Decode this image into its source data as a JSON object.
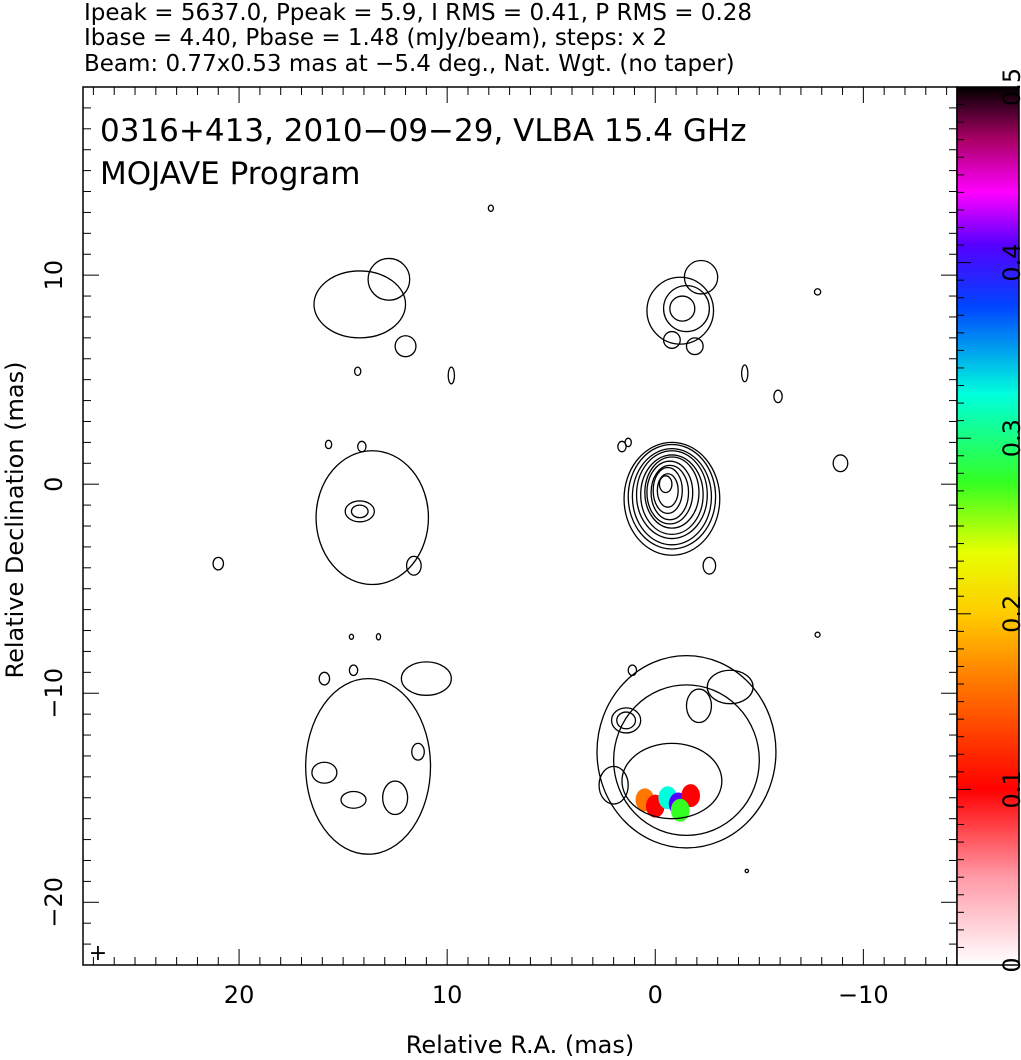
{
  "header": {
    "line1": "Ipeak = 5637.0, Ppeak = 5.9, I RMS = 0.41, P RMS = 0.28",
    "line2": "Ibase = 4.40, Pbase = 1.48 (mJy/beam), steps: x 2",
    "line3": "Beam: 0.77x0.53 mas at −5.4 deg., Nat. Wgt. (no taper)"
  },
  "chart_data": {
    "type": "contour",
    "title": "0316+413, 2010−09−29, VLBA 15.4 GHz",
    "subtitle": "MOJAVE Program",
    "xlabel": "Relative R.A. (mas)",
    "ylabel": "Relative Declination (mas)",
    "xlim": [
      27.5,
      -14.5
    ],
    "ylim": [
      -23,
      19
    ],
    "x_ticks": [
      20,
      10,
      0,
      -10
    ],
    "x_tick_labels": [
      "20",
      "10",
      "0",
      "−10"
    ],
    "y_ticks": [
      10,
      0,
      -10,
      -20
    ],
    "y_tick_labels": [
      "10",
      "0",
      "−10",
      "−20"
    ],
    "colorbar": {
      "range": [
        0,
        0.5
      ],
      "ticks": [
        0,
        0.1,
        0.2,
        0.3,
        0.4,
        0.5
      ],
      "tick_labels": [
        "0",
        "0.1",
        "0.2",
        "0.3",
        "0.4",
        "0.5"
      ]
    },
    "beam_marker": "+",
    "panels": [
      {
        "name": "top-left",
        "contours": [
          {
            "x": 14.2,
            "y": 8.6,
            "rx": 2.2,
            "ry": 1.6
          },
          {
            "x": 12.8,
            "y": 9.8,
            "rx": 1.0,
            "ry": 1.0
          },
          {
            "x": 12.0,
            "y": 6.6,
            "rx": 0.5,
            "ry": 0.5
          },
          {
            "x": 14.3,
            "y": 5.4,
            "rx": 0.15,
            "ry": 0.2
          }
        ]
      },
      {
        "name": "top-right",
        "contours": [
          {
            "x": -1.2,
            "y": 8.3,
            "rx": 1.6,
            "ry": 1.6
          },
          {
            "x": -1.5,
            "y": 8.4,
            "rx": 1.1,
            "ry": 1.1
          },
          {
            "x": -1.3,
            "y": 8.4,
            "rx": 0.6,
            "ry": 0.6
          },
          {
            "x": -2.2,
            "y": 9.9,
            "rx": 0.8,
            "ry": 0.8
          },
          {
            "x": -0.8,
            "y": 6.9,
            "rx": 0.4,
            "ry": 0.4
          },
          {
            "x": -1.9,
            "y": 6.6,
            "rx": 0.4,
            "ry": 0.4
          }
        ]
      },
      {
        "name": "middle-left",
        "contours": [
          {
            "x": 13.6,
            "y": -1.6,
            "rx": 2.7,
            "ry": 3.2
          },
          {
            "x": 14.2,
            "y": -1.3,
            "rx": 0.7,
            "ry": 0.5
          },
          {
            "x": 14.2,
            "y": -1.3,
            "rx": 0.4,
            "ry": 0.3
          },
          {
            "x": 15.7,
            "y": 1.9,
            "rx": 0.15,
            "ry": 0.2
          },
          {
            "x": 11.6,
            "y": -3.9,
            "rx": 0.35,
            "ry": 0.45
          },
          {
            "x": 21.0,
            "y": -3.8,
            "rx": 0.25,
            "ry": 0.3
          }
        ]
      },
      {
        "name": "middle-right",
        "contours": [
          {
            "x": -0.8,
            "y": -0.7,
            "rx": 2.3,
            "ry": 2.7
          },
          {
            "x": -0.8,
            "y": -0.6,
            "rx": 2.1,
            "ry": 2.5
          },
          {
            "x": -0.8,
            "y": -0.6,
            "rx": 1.9,
            "ry": 2.3
          },
          {
            "x": -0.8,
            "y": -0.5,
            "rx": 1.7,
            "ry": 2.1
          },
          {
            "x": -0.8,
            "y": -0.5,
            "rx": 1.5,
            "ry": 1.9
          },
          {
            "x": -0.8,
            "y": -0.4,
            "rx": 1.3,
            "ry": 1.7
          },
          {
            "x": -0.7,
            "y": -0.4,
            "rx": 1.1,
            "ry": 1.5
          },
          {
            "x": -0.7,
            "y": -0.4,
            "rx": 0.9,
            "ry": 1.3
          },
          {
            "x": -0.6,
            "y": -0.3,
            "rx": 0.7,
            "ry": 1.1
          },
          {
            "x": -0.6,
            "y": -0.3,
            "rx": 0.5,
            "ry": 0.8
          },
          {
            "x": -0.5,
            "y": 0.0,
            "rx": 0.3,
            "ry": 0.4
          },
          {
            "x": 1.3,
            "y": 2.0,
            "rx": 0.15,
            "ry": 0.2
          },
          {
            "x": -2.6,
            "y": -3.9,
            "rx": 0.3,
            "ry": 0.4
          }
        ]
      },
      {
        "name": "bottom-left",
        "contours": [
          {
            "x": 13.8,
            "y": -13.5,
            "rx": 3.0,
            "ry": 4.2
          },
          {
            "x": 11.0,
            "y": -9.3,
            "rx": 1.2,
            "ry": 0.8
          },
          {
            "x": 15.9,
            "y": -13.8,
            "rx": 0.6,
            "ry": 0.5
          },
          {
            "x": 12.5,
            "y": -15.0,
            "rx": 0.6,
            "ry": 0.8
          },
          {
            "x": 14.5,
            "y": -15.1,
            "rx": 0.6,
            "ry": 0.4
          },
          {
            "x": 11.4,
            "y": -12.8,
            "rx": 0.3,
            "ry": 0.4
          },
          {
            "x": 15.9,
            "y": -9.3,
            "rx": 0.25,
            "ry": 0.3
          }
        ]
      },
      {
        "name": "bottom-right",
        "contours": [
          {
            "x": -1.5,
            "y": -12.8,
            "rx": 4.3,
            "ry": 4.6
          },
          {
            "x": -1.5,
            "y": -13.2,
            "rx": 3.5,
            "ry": 3.6
          },
          {
            "x": -0.8,
            "y": -14.2,
            "rx": 2.4,
            "ry": 1.8
          },
          {
            "x": 1.4,
            "y": -11.3,
            "rx": 0.7,
            "ry": 0.6
          },
          {
            "x": 1.4,
            "y": -11.3,
            "rx": 0.45,
            "ry": 0.4
          },
          {
            "x": 2.0,
            "y": -14.4,
            "rx": 0.7,
            "ry": 0.9
          },
          {
            "x": -2.1,
            "y": -10.6,
            "rx": 0.6,
            "ry": 0.8
          },
          {
            "x": -3.6,
            "y": -9.7,
            "rx": 1.1,
            "ry": 0.8
          }
        ],
        "polarization_patches": [
          {
            "x": 0.5,
            "y": -15.1,
            "value": 0.18
          },
          {
            "x": 0.0,
            "y": -15.4,
            "value": 0.12
          },
          {
            "x": -0.6,
            "y": -15.0,
            "value": 0.35
          },
          {
            "x": -1.1,
            "y": -15.3,
            "value": 0.42
          },
          {
            "x": -1.7,
            "y": -14.9,
            "value": 0.1
          },
          {
            "x": -1.2,
            "y": -15.6,
            "value": 0.3
          }
        ]
      }
    ],
    "isolated_contours": [
      {
        "x": 7.9,
        "y": 13.2,
        "rx": 0.12,
        "ry": 0.15
      },
      {
        "x": 9.8,
        "y": 5.2,
        "rx": 0.15,
        "ry": 0.4
      },
      {
        "x": 14.1,
        "y": 1.8,
        "rx": 0.2,
        "ry": 0.25
      },
      {
        "x": 1.6,
        "y": 1.8,
        "rx": 0.2,
        "ry": 0.25
      },
      {
        "x": -4.3,
        "y": 5.3,
        "rx": 0.15,
        "ry": 0.4
      },
      {
        "x": -5.9,
        "y": 4.2,
        "rx": 0.2,
        "ry": 0.3
      },
      {
        "x": -7.8,
        "y": 9.2,
        "rx": 0.15,
        "ry": 0.15
      },
      {
        "x": -8.9,
        "y": 1.0,
        "rx": 0.35,
        "ry": 0.4
      },
      {
        "x": -4.4,
        "y": -18.5,
        "rx": 0.08,
        "ry": 0.08
      },
      {
        "x": -7.8,
        "y": -7.2,
        "rx": 0.12,
        "ry": 0.12
      },
      {
        "x": 14.6,
        "y": -7.3,
        "rx": 0.1,
        "ry": 0.12
      },
      {
        "x": 13.3,
        "y": -7.3,
        "rx": 0.1,
        "ry": 0.15
      },
      {
        "x": 14.5,
        "y": -8.9,
        "rx": 0.2,
        "ry": 0.25
      },
      {
        "x": 1.1,
        "y": -8.9,
        "rx": 0.2,
        "ry": 0.25
      }
    ]
  }
}
